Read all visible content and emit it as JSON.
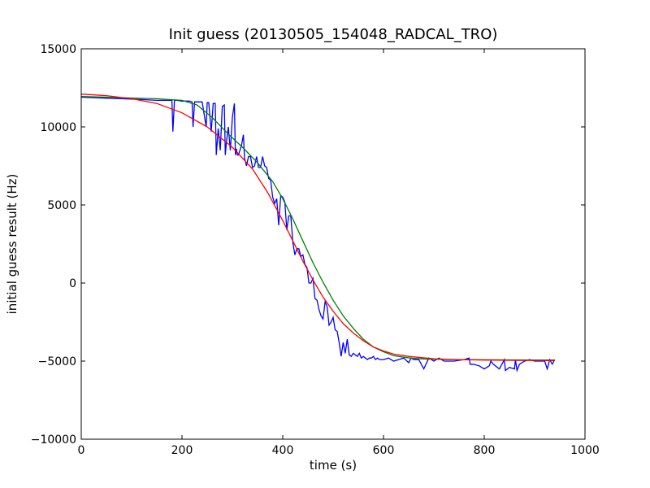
{
  "chart_data": {
    "type": "line",
    "title": "Init guess (20130505_154048_RADCAL_TRO)",
    "xlabel": "time (s)",
    "ylabel": "initial guess result (Hz)",
    "xlim": [
      0,
      1000
    ],
    "ylim": [
      -10000,
      15000
    ],
    "xticks": [
      0,
      200,
      400,
      600,
      800,
      1000
    ],
    "yticks": [
      -10000,
      -5000,
      0,
      5000,
      10000,
      15000
    ],
    "xtick_labels": [
      "0",
      "200",
      "400",
      "600",
      "800",
      "1000"
    ],
    "ytick_labels": [
      "−10000",
      "−5000",
      "0",
      "5000",
      "10000",
      "15000"
    ],
    "grid": false,
    "legend": "none",
    "series": [
      {
        "color": "#0000ff",
        "x": [
          0,
          40,
          80,
          120,
          150,
          180,
          182,
          185,
          190,
          200,
          215,
          220,
          222,
          225,
          230,
          240,
          248,
          250,
          253,
          258,
          262,
          266,
          268,
          272,
          276,
          280,
          284,
          286,
          288,
          292,
          296,
          300,
          304,
          306,
          308,
          310,
          312,
          318,
          322,
          324,
          328,
          332,
          336,
          340,
          344,
          348,
          352,
          356,
          360,
          364,
          368,
          372,
          376,
          380,
          384,
          388,
          392,
          396,
          400,
          404,
          408,
          412,
          416,
          420,
          424,
          428,
          432,
          436,
          440,
          444,
          448,
          452,
          456,
          460,
          464,
          468,
          472,
          476,
          480,
          484,
          488,
          492,
          496,
          500,
          504,
          508,
          512,
          516,
          520,
          524,
          528,
          532,
          536,
          540,
          544,
          548,
          552,
          556,
          560,
          564,
          568,
          572,
          576,
          580,
          584,
          588,
          592,
          596,
          600,
          610,
          620,
          630,
          640,
          650,
          655,
          660,
          670,
          675,
          680,
          690,
          700,
          710,
          720,
          740,
          760,
          770,
          772,
          778,
          790,
          800,
          810,
          813,
          818,
          830,
          840,
          842,
          850,
          860,
          862,
          865,
          870,
          880,
          890,
          900,
          920,
          925,
          930,
          935,
          940
        ],
        "y": [
          11900,
          11850,
          11800,
          11750,
          11700,
          11700,
          9700,
          11700,
          11700,
          11650,
          11650,
          11600,
          10000,
          11600,
          11600,
          11600,
          10000,
          11550,
          11550,
          9700,
          11500,
          11500,
          8200,
          9900,
          8500,
          11300,
          11400,
          8200,
          9000,
          10000,
          8500,
          10600,
          11500,
          8200,
          8600,
          8200,
          8200,
          8800,
          9500,
          8000,
          7500,
          8100,
          8100,
          7400,
          7500,
          8100,
          7400,
          7400,
          8100,
          7500,
          7400,
          6700,
          6600,
          5500,
          5100,
          5400,
          3700,
          5600,
          5500,
          5200,
          3400,
          4300,
          4300,
          2600,
          1800,
          2200,
          2200,
          1700,
          1800,
          1200,
          1000,
          0,
          0,
          300,
          -1000,
          -1100,
          -1700,
          -2100,
          -2300,
          -1200,
          -1500,
          -2700,
          -2500,
          -2200,
          -3000,
          -3100,
          -3800,
          -4700,
          -3800,
          -4500,
          -3600,
          -4600,
          -4700,
          -4500,
          -4600,
          -4700,
          -4500,
          -4800,
          -4700,
          -4800,
          -4900,
          -4800,
          -4800,
          -4700,
          -4900,
          -4800,
          -4900,
          -4900,
          -4900,
          -4800,
          -5000,
          -4900,
          -4800,
          -5100,
          -4800,
          -4900,
          -4900,
          -5200,
          -5500,
          -4800,
          -5000,
          -4800,
          -5000,
          -5000,
          -4900,
          -4800,
          -5200,
          -5200,
          -5300,
          -5500,
          -5300,
          -5000,
          -5200,
          -5500,
          -4900,
          -5600,
          -5400,
          -5500,
          -4900,
          -5600,
          -5200,
          -5000,
          -4900,
          -5000,
          -5000,
          -5500,
          -4900,
          -5200,
          -4900
        ]
      },
      {
        "color": "#008000",
        "x": [
          0,
          50,
          100,
          150,
          200,
          230,
          260,
          290,
          320,
          350,
          380,
          400,
          420,
          440,
          460,
          480,
          500,
          520,
          540,
          560,
          580,
          600,
          620,
          640,
          660,
          680,
          700,
          750,
          800,
          850,
          900,
          940
        ],
        "y": [
          11950,
          11900,
          11850,
          11800,
          11700,
          11400,
          10600,
          9600,
          8700,
          7700,
          6500,
          5400,
          4100,
          2700,
          1300,
          50,
          -1100,
          -2100,
          -2900,
          -3600,
          -4100,
          -4400,
          -4650,
          -4750,
          -4830,
          -4860,
          -4880,
          -4900,
          -4910,
          -4920,
          -4925,
          -4930
        ]
      },
      {
        "color": "#ff0000",
        "x": [
          0,
          50,
          100,
          150,
          200,
          250,
          300,
          340,
          370,
          400,
          420,
          440,
          460,
          480,
          500,
          520,
          540,
          560,
          580,
          600,
          620,
          650,
          700,
          750,
          800,
          850,
          900,
          940
        ],
        "y": [
          12100,
          12000,
          11800,
          11500,
          10900,
          10000,
          8700,
          7300,
          5800,
          4000,
          2700,
          1400,
          200,
          -900,
          -1800,
          -2600,
          -3200,
          -3700,
          -4100,
          -4350,
          -4550,
          -4700,
          -4850,
          -4900,
          -4930,
          -4950,
          -4960,
          -4965
        ]
      }
    ]
  }
}
